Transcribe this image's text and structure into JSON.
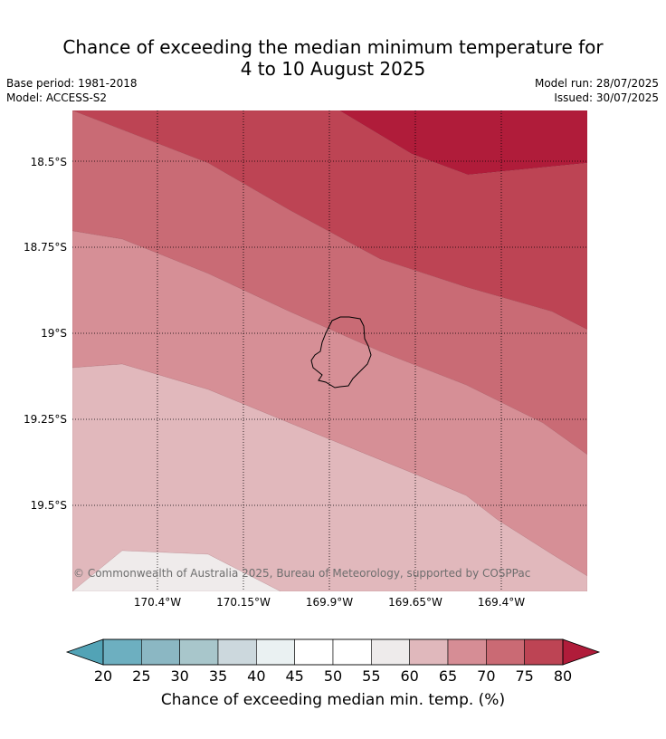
{
  "title": {
    "line1": "Chance of exceeding the median minimum temperature for",
    "line2": "4 to 10 August 2025"
  },
  "meta": {
    "base_period": "Base period: 1981-2018",
    "model": "Model: ACCESS-S2",
    "model_run": "Model run: 28/07/2025",
    "issued": "Issued: 30/07/2025"
  },
  "map": {
    "lat_labels": [
      "18.5°S",
      "18.75°S",
      "19°S",
      "19.25°S",
      "19.5°S"
    ],
    "lon_labels": [
      "170.4°W",
      "170.15°W",
      "169.9°W",
      "169.65°W",
      "169.4°W"
    ],
    "copyright": "© Commonwealth of Australia 2025, Bureau of Meteorology, supported by COSPPac",
    "island_outline": "coastline",
    "band_colors": {
      "55-60": "#efebeb",
      "60-65": "#e1b8bc",
      "65-70": "#d68f96",
      "70-75": "#c96b75",
      "75-80": "#bd4454",
      "80+": "#b01c3a"
    }
  },
  "colorbar": {
    "ticks": [
      "20",
      "25",
      "30",
      "35",
      "40",
      "45",
      "50",
      "55",
      "60",
      "65",
      "70",
      "75",
      "80"
    ],
    "label": "Chance of exceeding median min. temp. (%)",
    "colors": {
      "below-20": "#52a3b6",
      "20-25": "#6dafc0",
      "25-30": "#8bb7c3",
      "30-35": "#a8c6cb",
      "35-40": "#ccd8dd",
      "40-45": "#eaf1f2",
      "45-50": "#ffffff",
      "50-55": "#ffffff",
      "55-60": "#eeebeb",
      "60-65": "#e0b8bc",
      "65-70": "#d68d95",
      "70-75": "#ca6a74",
      "75-80": "#bd4454",
      "above-80": "#b01c3a"
    }
  }
}
